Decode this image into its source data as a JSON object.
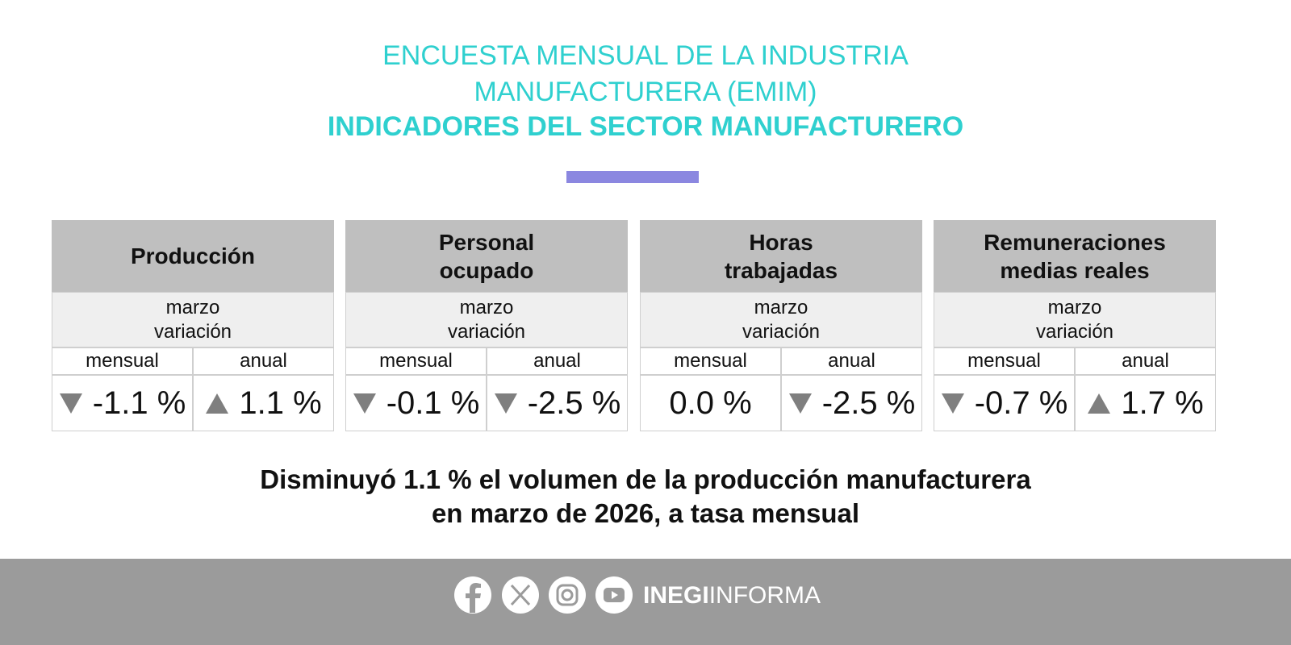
{
  "header": {
    "title_line1": "ENCUESTA MENSUAL DE LA INDUSTRIA",
    "title_line2": "MANUFACTURERA (EMIM)",
    "subtitle": "INDICADORES DEL SECTOR MANUFACTURERO"
  },
  "table": {
    "groups": [
      {
        "name": [
          "Producción"
        ],
        "period": "marzo",
        "measure": "variación",
        "columns": [
          {
            "label": "mensual",
            "value": "-1.1 %",
            "trend": "down"
          },
          {
            "label": "anual",
            "value": "1.1 %",
            "trend": "up"
          }
        ]
      },
      {
        "name": [
          "Personal",
          "ocupado"
        ],
        "period": "marzo",
        "measure": "variación",
        "columns": [
          {
            "label": "mensual",
            "value": "-0.1 %",
            "trend": "down"
          },
          {
            "label": "anual",
            "value": "-2.5 %",
            "trend": "down"
          }
        ]
      },
      {
        "name": [
          "Horas",
          "trabajadas"
        ],
        "period": "marzo",
        "measure": "variación",
        "columns": [
          {
            "label": "mensual",
            "value": "0.0 %",
            "trend": null
          },
          {
            "label": "anual",
            "value": "-2.5 %",
            "trend": "down"
          }
        ]
      },
      {
        "name": [
          "Remuneraciones",
          "medias reales"
        ],
        "period": "marzo",
        "measure": "variación",
        "columns": [
          {
            "label": "mensual",
            "value": "-0.7 %",
            "trend": "down"
          },
          {
            "label": "anual",
            "value": "1.7 %",
            "trend": "up"
          }
        ]
      }
    ]
  },
  "headline": {
    "line1": "Disminuyó 1.1 % el volumen de la producción manufacturera",
    "line2": "en marzo de 2026, a tasa mensual"
  },
  "footer": {
    "brand_bold": "INEGI",
    "brand_regular": "INFORMA"
  }
}
